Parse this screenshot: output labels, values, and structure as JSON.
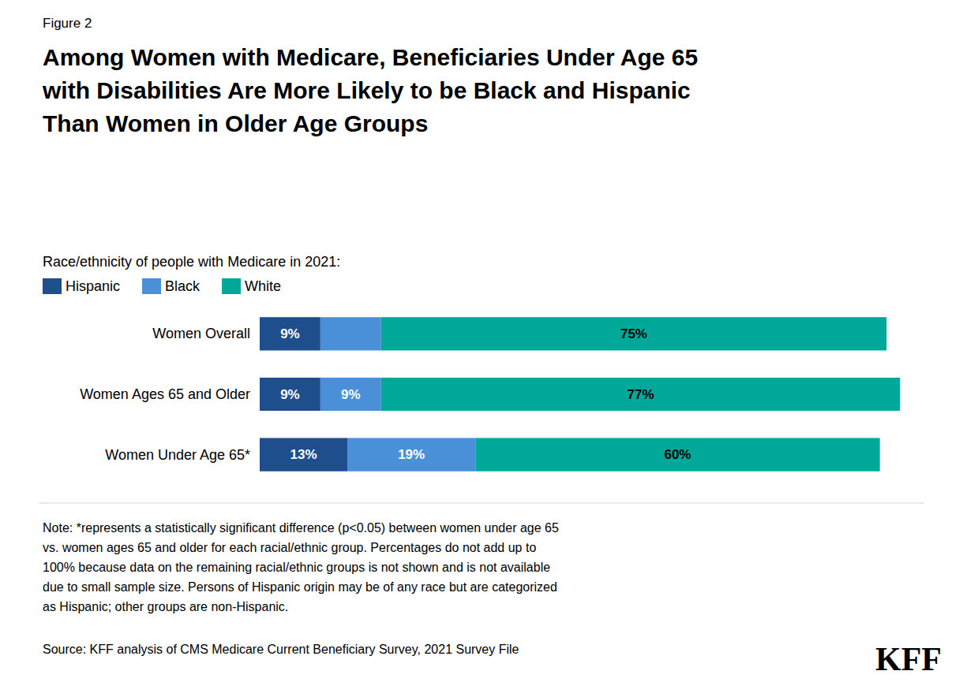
{
  "chart_data": {
    "type": "bar",
    "orientation": "horizontal",
    "stacked": true,
    "figure_label": "Figure 2",
    "title": "Among Women with Medicare, Beneficiaries Under Age 65\nwith Disabilities Are More Likely to be Black and Hispanic\nThan Women in Older Age Groups",
    "subtitle": "Race/ethnicity of people with Medicare in 2021:",
    "categories": [
      "Women Overall",
      "Women Ages 65 and Older",
      "Women Under Age 65*"
    ],
    "series": [
      {
        "name": "Hispanic",
        "color": "#1F4E8C",
        "values": [
          9,
          9,
          13
        ],
        "value_labels": [
          "9%",
          "9%",
          "13%"
        ]
      },
      {
        "name": "Black",
        "color": "#4A90D9",
        "values": [
          9,
          9,
          19
        ],
        "value_labels": [
          null,
          "9%",
          "19%"
        ]
      },
      {
        "name": "White",
        "color": "#00A89A",
        "values": [
          75,
          77,
          60
        ],
        "value_labels": [
          "75%",
          "77%",
          "60%"
        ]
      }
    ],
    "xlim": [
      0,
      100
    ],
    "tick_labels": "y",
    "grid": false,
    "legend": "top",
    "data_labels": true,
    "note": [
      "Note: *represents a statistically significant difference (p<0.05) between women under age 65",
      "vs. women ages 65 and older for each racial/ethnic group. Percentages do not add up to",
      "100% because data on the remaining racial/ethnic groups is not shown and is not available",
      "due to small sample size. Persons of Hispanic origin may be of any race but are categorized",
      "as Hispanic; other groups are non-Hispanic."
    ],
    "source": "Source: KFF analysis of CMS Medicare Current Beneficiary Survey, 2021 Survey File",
    "logo_text": "KFF"
  }
}
